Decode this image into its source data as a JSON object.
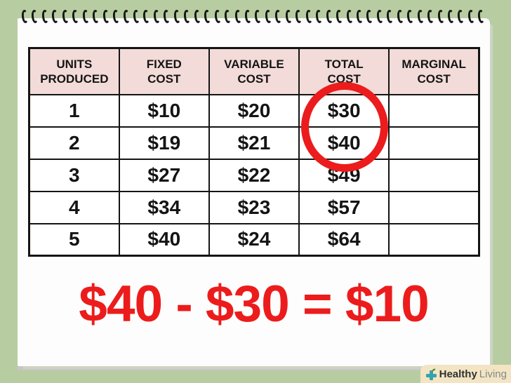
{
  "colors": {
    "background_green": "#b7cda1",
    "page_white": "#fdfdfd",
    "header_pink": "#f2dbd8",
    "table_border_black": "#141414",
    "annotation_red": "#ec1c1c",
    "page_shadow_gray": "#c6c6c6",
    "watermark_cream": "#f3e5c3",
    "watermark_teal": "#35a3ab",
    "watermark_leaf_green": "#67b03f"
  },
  "table": {
    "headers": [
      "UNITS\nPRODUCED",
      "FIXED\nCOST",
      "VARIABLE\nCOST",
      "TOTAL\nCOST",
      "MARGINAL\nCOST"
    ],
    "rows": [
      [
        "1",
        "$10",
        "$20",
        "$30",
        ""
      ],
      [
        "2",
        "$19",
        "$21",
        "$40",
        ""
      ],
      [
        "3",
        "$27",
        "$22",
        "$49",
        ""
      ],
      [
        "4",
        "$34",
        "$23",
        "$57",
        ""
      ],
      [
        "5",
        "$40",
        "$24",
        "$64",
        ""
      ]
    ]
  },
  "annotation": {
    "equation": "$40 - $30 = $10",
    "circled_values": [
      "$30",
      "$40"
    ],
    "circled_column": "TOTAL COST"
  },
  "watermark": {
    "bold_text": "Healthy",
    "light_text": "Living",
    "icon": "plus-leaf-icon"
  },
  "decor": {
    "ring_count": 46
  }
}
